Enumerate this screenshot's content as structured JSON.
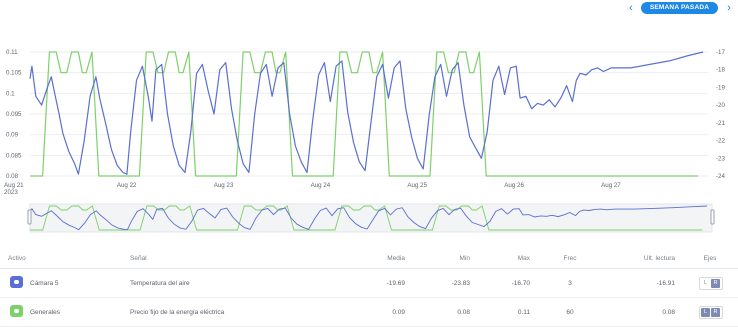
{
  "header": {
    "prev_icon": "chevron-left-icon",
    "next_icon": "chevron-right-icon",
    "period_label": "SEMANA PASADA",
    "accent_color": "#1e88e5"
  },
  "chart_data": {
    "type": "line",
    "x_ticks": [
      "Aug 21\n2023",
      "Aug 22",
      "Aug 23",
      "Aug 24",
      "Aug 25",
      "Aug 26",
      "Aug 27"
    ],
    "x_tick_line1": [
      "Aug 21",
      "Aug 22",
      "Aug 23",
      "Aug 24",
      "Aug 25",
      "Aug 26",
      "Aug 27"
    ],
    "x_tick_year": "2023",
    "y_left": {
      "ticks": [
        "0.11",
        "0.105",
        "0.1",
        "0.095",
        "0.09",
        "0.085",
        "0.08"
      ],
      "range": [
        0.08,
        0.11
      ]
    },
    "y_right": {
      "ticks": [
        "-17",
        "-18",
        "-19",
        "-20",
        "-21",
        "-22",
        "-23",
        "-24"
      ],
      "range": [
        -24,
        -17
      ]
    },
    "grid": true,
    "series": [
      {
        "name": "Precio fijo de la energía eléctrica",
        "axis": "left",
        "color": "#7ed06a",
        "x": [
          0,
          0.13,
          0.2,
          0.27,
          0.32,
          0.38,
          0.43,
          0.5,
          0.54,
          0.58,
          0.64,
          0.71,
          0.95,
          1.13,
          1.2,
          1.27,
          1.32,
          1.38,
          1.43,
          1.5,
          1.54,
          1.58,
          1.64,
          1.71,
          1.95,
          2.13,
          2.2,
          2.27,
          2.32,
          2.38,
          2.43,
          2.5,
          2.54,
          2.58,
          2.64,
          2.71,
          2.95,
          3.13,
          3.2,
          3.27,
          3.32,
          3.38,
          3.43,
          3.5,
          3.54,
          3.58,
          3.64,
          3.71,
          3.95,
          4.13,
          4.2,
          4.27,
          4.32,
          4.38,
          4.43,
          4.5,
          4.54,
          4.58,
          4.64,
          4.71,
          4.95,
          5.0,
          5.1,
          6.9
        ],
        "y": [
          0.08,
          0.08,
          0.11,
          0.11,
          0.105,
          0.105,
          0.11,
          0.11,
          0.105,
          0.105,
          0.11,
          0.08,
          0.08,
          0.08,
          0.11,
          0.11,
          0.105,
          0.105,
          0.11,
          0.11,
          0.105,
          0.105,
          0.11,
          0.08,
          0.08,
          0.08,
          0.11,
          0.11,
          0.105,
          0.105,
          0.11,
          0.11,
          0.105,
          0.105,
          0.11,
          0.08,
          0.08,
          0.08,
          0.11,
          0.11,
          0.105,
          0.105,
          0.11,
          0.11,
          0.105,
          0.105,
          0.11,
          0.08,
          0.08,
          0.08,
          0.11,
          0.11,
          0.105,
          0.105,
          0.11,
          0.11,
          0.105,
          0.105,
          0.11,
          0.08,
          0.08,
          0.08,
          0.08,
          0.08
        ]
      },
      {
        "name": "Temperatura del aire",
        "axis": "right",
        "color": "#5a6fd1",
        "x": [
          0,
          0.02,
          0.06,
          0.12,
          0.18,
          0.22,
          0.25,
          0.3,
          0.34,
          0.4,
          0.46,
          0.5,
          0.56,
          0.62,
          0.68,
          0.72,
          0.78,
          0.84,
          0.9,
          0.96,
          1.0,
          1.04,
          1.1,
          1.16,
          1.22,
          1.26,
          1.3,
          1.36,
          1.42,
          1.48,
          1.54,
          1.6,
          1.66,
          1.72,
          1.78,
          1.84,
          1.9,
          1.96,
          2.02,
          2.08,
          2.14,
          2.2,
          2.26,
          2.32,
          2.38,
          2.44,
          2.5,
          2.56,
          2.62,
          2.68,
          2.74,
          2.8,
          2.86,
          2.92,
          2.98,
          3.04,
          3.1,
          3.16,
          3.22,
          3.28,
          3.34,
          3.4,
          3.46,
          3.52,
          3.58,
          3.64,
          3.7,
          3.76,
          3.82,
          3.88,
          3.94,
          4.0,
          4.06,
          4.12,
          4.18,
          4.24,
          4.3,
          4.36,
          4.42,
          4.48,
          4.54,
          4.6,
          4.66,
          4.72,
          4.78,
          4.84,
          4.9,
          4.96,
          5.02,
          5.06,
          5.12,
          5.18,
          5.24,
          5.3,
          5.36,
          5.42,
          5.48,
          5.54,
          5.6,
          5.64,
          5.68,
          5.74,
          5.8,
          5.86,
          5.92,
          6.0,
          6.2,
          6.4,
          6.6,
          6.8,
          6.95
        ],
        "y": [
          -18.5,
          -17.8,
          -19.5,
          -20,
          -19,
          -18.4,
          -19.2,
          -20.5,
          -21.6,
          -22.6,
          -23.3,
          -23.9,
          -22,
          -19.5,
          -18.4,
          -19.6,
          -21,
          -22.5,
          -23.4,
          -23.8,
          -23.9,
          -21.5,
          -18.6,
          -17.8,
          -19.5,
          -20.9,
          -18,
          -17.7,
          -20.5,
          -22.3,
          -23.4,
          -23.8,
          -21.5,
          -18.2,
          -17.7,
          -19.2,
          -20.5,
          -18,
          -17.6,
          -20.2,
          -22,
          -23.3,
          -23.8,
          -20.5,
          -18.2,
          -17.7,
          -19.5,
          -17.9,
          -17.6,
          -20.5,
          -22.3,
          -23.2,
          -23.8,
          -20.8,
          -18.3,
          -17.6,
          -19.8,
          -17.8,
          -17.5,
          -20.4,
          -22.1,
          -23.2,
          -23.7,
          -21,
          -18.4,
          -17.7,
          -19.6,
          -17.9,
          -17.5,
          -20.2,
          -21.8,
          -23,
          -23.6,
          -20.6,
          -18.4,
          -17.7,
          -19.5,
          -18,
          -17.6,
          -20,
          -21.8,
          -22.4,
          -23,
          -21.5,
          -18.6,
          -17.8,
          -19.4,
          -17.9,
          -17.8,
          -19.6,
          -19.5,
          -20.2,
          -19.9,
          -20,
          -19.7,
          -20.1,
          -19.6,
          -18.9,
          -19.8,
          -18.6,
          -18.2,
          -18.3,
          -18,
          -17.9,
          -18.1,
          -17.9,
          -17.9,
          -17.7,
          -17.5,
          -17.2,
          -17
        ]
      }
    ]
  },
  "table": {
    "headers": {
      "asset": "Activo",
      "signal": "Señal",
      "mean": "Media",
      "min": "Min",
      "max": "Max",
      "freq": "Frec",
      "last": "Ult. lectura",
      "axes": "Ejes"
    },
    "rows": [
      {
        "asset": "Cámara 5",
        "asset_icon": "camera-icon",
        "icon_color": "#5a6fd1",
        "signal": "Temperatura del aire",
        "mean": "-19.69",
        "min": "-23.83",
        "max": "-16.70",
        "freq": "3",
        "last": "-16.91",
        "axis_left": "L",
        "axis_right": "R"
      },
      {
        "asset": "Generales",
        "asset_icon": "energy-icon",
        "icon_color": "#7ed06a",
        "signal": "Precio fijo de la energía eléctrica",
        "mean": "0.09",
        "min": "0.08",
        "max": "0.11",
        "freq": "60",
        "last": "0.08",
        "axis_left": "L",
        "axis_right": "R"
      }
    ]
  }
}
